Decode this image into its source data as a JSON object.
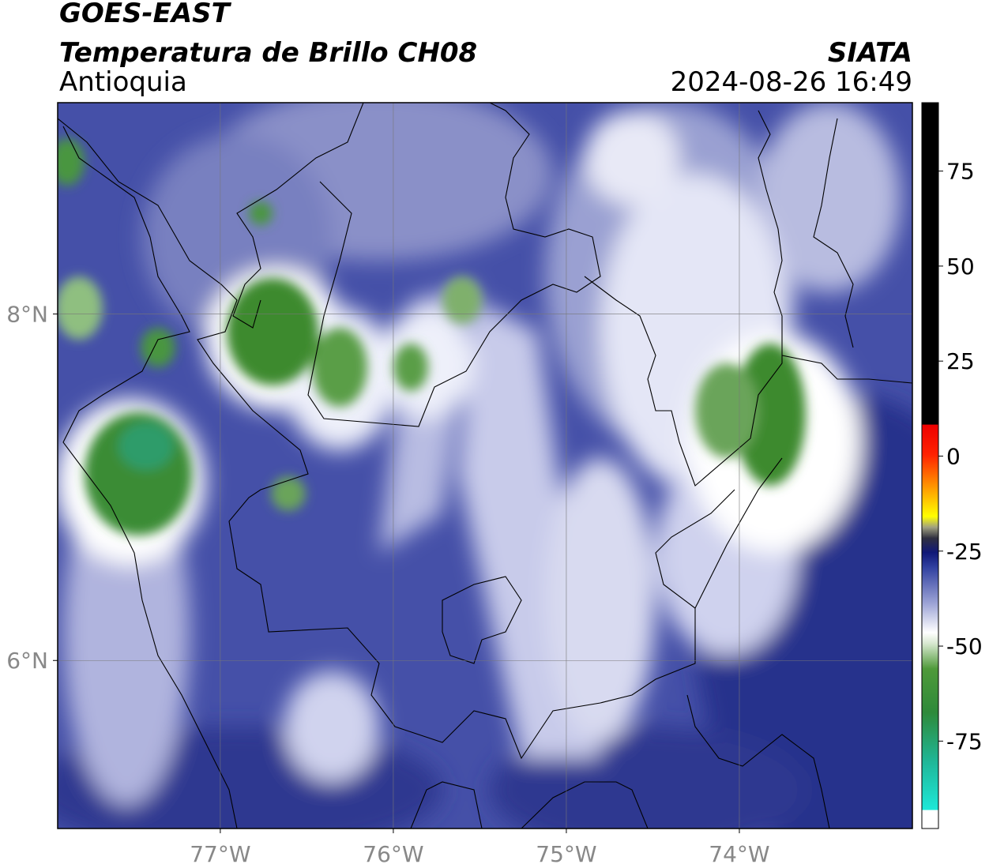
{
  "header": {
    "source": "GOES-EAST",
    "title": "Temperatura de Brillo CH08",
    "organization": "SIATA",
    "region": "Antioquia",
    "timestamp": "2024-08-26 16:49"
  },
  "map": {
    "xlim": [
      -77.94,
      -73.0
    ],
    "ylim": [
      5.03,
      9.22
    ],
    "xticks": [
      {
        "value": -77,
        "label": "77°W"
      },
      {
        "value": -76,
        "label": "76°W"
      },
      {
        "value": -75,
        "label": "75°W"
      },
      {
        "value": -74,
        "label": "74°W"
      }
    ],
    "yticks": [
      {
        "value": 6,
        "label": "6°N"
      },
      {
        "value": 8,
        "label": "8°N"
      }
    ],
    "grid": true
  },
  "colorbar": {
    "lim": [
      -98,
      93
    ],
    "ticks": [
      75,
      50,
      25,
      0,
      -25,
      -50,
      -75
    ]
  }
}
